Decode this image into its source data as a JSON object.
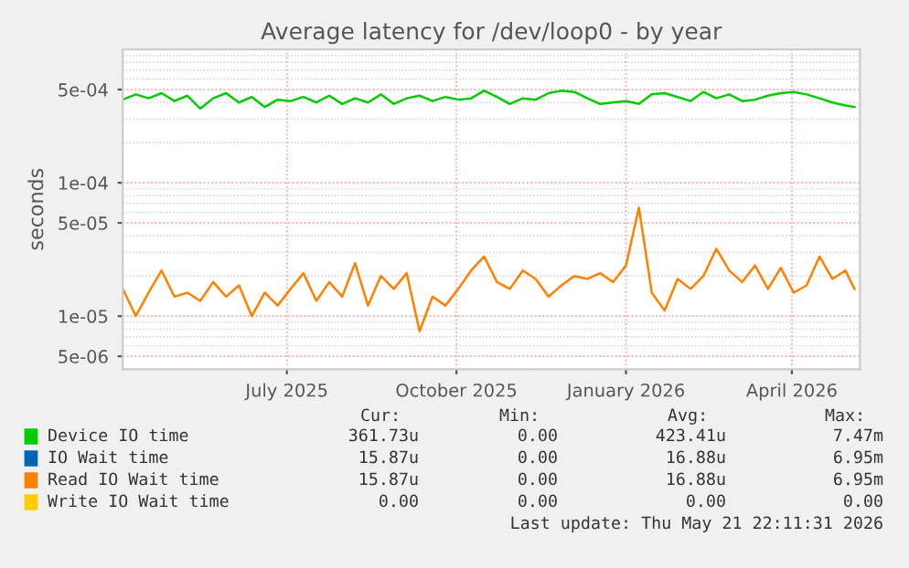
{
  "chart_data": {
    "type": "line",
    "title": "Average latency for /dev/loop0 - by year",
    "ylabel": "seconds",
    "x": [
      "2025-04-17",
      "2025-04-24",
      "2025-05-01",
      "2025-05-08",
      "2025-05-15",
      "2025-05-22",
      "2025-05-29",
      "2025-06-05",
      "2025-06-12",
      "2025-06-19",
      "2025-06-26",
      "2025-07-03",
      "2025-07-10",
      "2025-07-17",
      "2025-07-24",
      "2025-07-31",
      "2025-08-07",
      "2025-08-14",
      "2025-08-21",
      "2025-08-28",
      "2025-09-04",
      "2025-09-11",
      "2025-09-18",
      "2025-09-25",
      "2025-10-02",
      "2025-10-09",
      "2025-10-16",
      "2025-10-23",
      "2025-10-30",
      "2025-11-06",
      "2025-11-13",
      "2025-11-20",
      "2025-11-27",
      "2025-12-04",
      "2025-12-11",
      "2025-12-18",
      "2025-12-25",
      "2026-01-01",
      "2026-01-08",
      "2026-01-15",
      "2026-01-22",
      "2026-01-29",
      "2026-02-05",
      "2026-02-12",
      "2026-02-19",
      "2026-02-26",
      "2026-03-05",
      "2026-03-12",
      "2026-03-19",
      "2026-03-26",
      "2026-04-02",
      "2026-04-09",
      "2026-04-16",
      "2026-04-23",
      "2026-04-30",
      "2026-05-07",
      "2026-05-14",
      "2026-05-19"
    ],
    "series": [
      {
        "name": "Device IO time",
        "color": "#00cc00",
        "values": [
          0.00042,
          0.00046,
          0.00043,
          0.00047,
          0.00041,
          0.00045,
          0.00036,
          0.00043,
          0.00047,
          0.0004,
          0.00044,
          0.00037,
          0.00042,
          0.00041,
          0.00044,
          0.0004,
          0.00045,
          0.00039,
          0.00043,
          0.0004,
          0.00046,
          0.00039,
          0.00043,
          0.00045,
          0.00041,
          0.00044,
          0.00042,
          0.00043,
          0.00049,
          0.00044,
          0.00039,
          0.00043,
          0.00042,
          0.00047,
          0.00049,
          0.00048,
          0.00043,
          0.00039,
          0.0004,
          0.00041,
          0.00039,
          0.00046,
          0.00047,
          0.00044,
          0.00041,
          0.00048,
          0.00043,
          0.00046,
          0.00041,
          0.00042,
          0.00045,
          0.00047,
          0.00048,
          0.00046,
          0.00043,
          0.0004,
          0.00038,
          0.00037
        ]
      },
      {
        "name": "IO Wait time",
        "color": "#0066b3",
        "values": [
          null,
          null,
          null,
          null,
          null,
          null,
          null,
          null,
          null,
          null,
          null,
          null,
          null,
          null,
          null,
          null,
          null,
          null,
          null,
          null,
          null,
          null,
          null,
          null,
          null,
          null,
          null,
          null,
          null,
          null,
          null,
          null,
          null,
          null,
          null,
          null,
          null,
          null,
          null,
          null,
          null,
          null,
          null,
          null,
          null,
          null,
          null,
          null,
          null,
          null,
          null,
          null,
          null,
          null,
          null,
          null,
          null,
          null
        ]
      },
      {
        "name": "Read IO Wait time",
        "color": "#ff8000",
        "values": [
          1.6e-05,
          1e-05,
          1.5e-05,
          2.2e-05,
          1.4e-05,
          1.5e-05,
          1.3e-05,
          1.8e-05,
          1.4e-05,
          1.7e-05,
          1e-05,
          1.5e-05,
          1.2e-05,
          1.6e-05,
          2.1e-05,
          1.3e-05,
          1.8e-05,
          1.4e-05,
          2.5e-05,
          1.2e-05,
          2e-05,
          1.6e-05,
          2.1e-05,
          7.7e-06,
          1.4e-05,
          1.2e-05,
          1.6e-05,
          2.2e-05,
          2.8e-05,
          1.8e-05,
          1.6e-05,
          2.2e-05,
          1.9e-05,
          1.4e-05,
          1.7e-05,
          2e-05,
          1.9e-05,
          2.1e-05,
          1.8e-05,
          2.4e-05,
          6.5e-05,
          1.5e-05,
          1.1e-05,
          1.9e-05,
          1.6e-05,
          2e-05,
          3.2e-05,
          2.2e-05,
          1.8e-05,
          2.4e-05,
          1.6e-05,
          2.3e-05,
          1.5e-05,
          1.7e-05,
          2.8e-05,
          1.9e-05,
          2.2e-05,
          1.6e-05
        ]
      },
      {
        "name": "Write IO Wait time",
        "color": "#ffcc00",
        "values": [
          null,
          null,
          null,
          null,
          null,
          null,
          null,
          null,
          null,
          null,
          null,
          null,
          null,
          null,
          null,
          null,
          null,
          null,
          null,
          null,
          null,
          null,
          null,
          null,
          null,
          null,
          null,
          null,
          null,
          null,
          null,
          null,
          null,
          null,
          null,
          null,
          null,
          null,
          null,
          null,
          null,
          null,
          null,
          null,
          null,
          null,
          null,
          null,
          null,
          null,
          null,
          null,
          null,
          null,
          null,
          null,
          null,
          null
        ]
      }
    ],
    "log": "y",
    "ylim": [
      4e-06,
      0.001
    ],
    "yticks": [
      {
        "value": 5e-06,
        "label": "5e-06"
      },
      {
        "value": 1e-05,
        "label": "1e-05"
      },
      {
        "value": 5e-05,
        "label": "5e-05"
      },
      {
        "value": 0.0001,
        "label": "1e-04"
      },
      {
        "value": 0.0005,
        "label": "5e-04"
      }
    ],
    "xlim": [
      "2025-04-16T22:11",
      "2026-05-21T22:11"
    ],
    "xticks": [
      {
        "value": "2025-07-15",
        "label": "July 2025"
      },
      {
        "value": "2025-10-15",
        "label": "October 2025"
      },
      {
        "value": "2026-01-15",
        "label": "January 2026"
      },
      {
        "value": "2026-04-15",
        "label": "April 2026"
      }
    ],
    "grid": true,
    "legend": "bottom",
    "line_style": "solid",
    "marker": "none",
    "annotations": [
      "Cur:",
      "Min:",
      "Avg:",
      "Max:",
      "361.73u",
      "0.00",
      "423.41u",
      "7.47m",
      "15.87u",
      "0.00",
      "16.88u",
      "6.95m",
      "15.87u",
      "0.00",
      "16.88u",
      "6.95m",
      "0.00",
      "0.00",
      "0.00",
      "0.00",
      "Last update: Thu May 21 22:11:31 2026"
    ]
  }
}
